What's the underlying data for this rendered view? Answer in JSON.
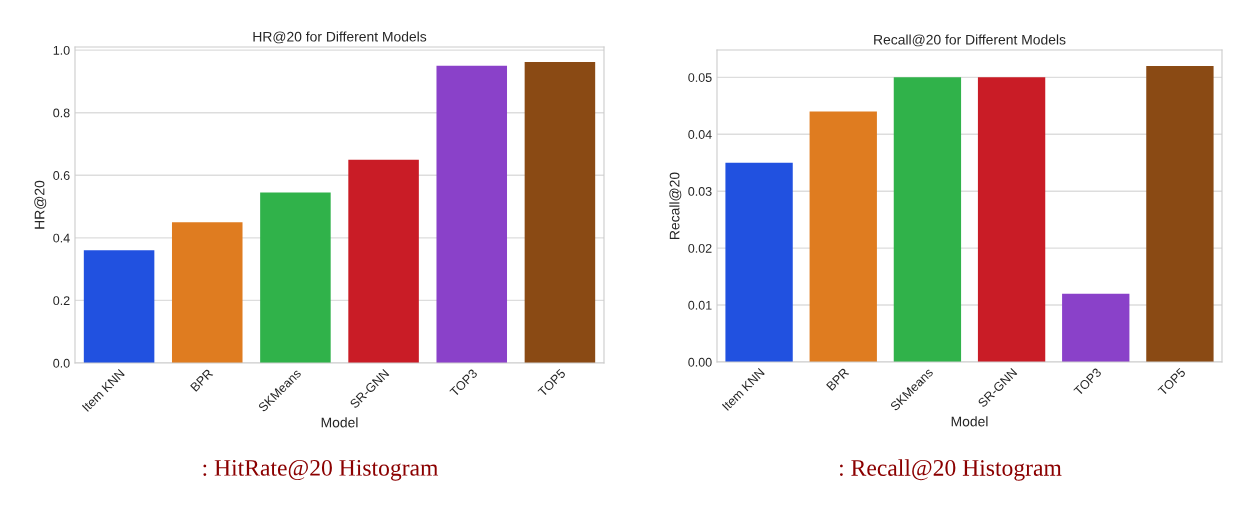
{
  "chart_data": [
    {
      "type": "bar",
      "title": "HR@20 for Different Models",
      "xlabel": "Model",
      "ylabel": "HR@20",
      "categories": [
        "Item KNN",
        "BPR",
        "SKMeans",
        "SR-GNN",
        "TOP3",
        "TOP5"
      ],
      "values": [
        0.36,
        0.45,
        0.545,
        0.65,
        0.95,
        0.962
      ],
      "colors": [
        "#2151e0",
        "#df7c20",
        "#30b24a",
        "#c91c26",
        "#8a41c9",
        "#8a4a14"
      ],
      "ylim": [
        0,
        1.01
      ],
      "yticks": [
        {
          "value": 0,
          "label": "0.0"
        },
        {
          "value": 0.2,
          "label": "0.2"
        },
        {
          "value": 0.4,
          "label": "0.4"
        },
        {
          "value": 0.6,
          "label": "0.6"
        },
        {
          "value": 0.8,
          "label": "0.8"
        },
        {
          "value": 1.0,
          "label": "1.0"
        }
      ],
      "grid": "y",
      "annotations": [
        ": HitRate@20 Histogram"
      ]
    },
    {
      "type": "bar",
      "title": "Recall@20 for Different Models",
      "xlabel": "Model",
      "ylabel": "Recall@20",
      "categories": [
        "Item KNN",
        "BPR",
        "SKMeans",
        "SR-GNN",
        "TOP3",
        "TOP5"
      ],
      "values": [
        0.035,
        0.044,
        0.05,
        0.05,
        0.012,
        0.052
      ],
      "colors": [
        "#2151e0",
        "#df7c20",
        "#30b24a",
        "#c91c26",
        "#8a41c9",
        "#8a4a14"
      ],
      "ylim": [
        0,
        0.0548
      ],
      "yticks": [
        {
          "value": 0,
          "label": "0.00"
        },
        {
          "value": 0.01,
          "label": "0.01"
        },
        {
          "value": 0.02,
          "label": "0.02"
        },
        {
          "value": 0.03,
          "label": "0.03"
        },
        {
          "value": 0.04,
          "label": "0.04"
        },
        {
          "value": 0.05,
          "label": "0.05"
        }
      ],
      "grid": "y",
      "annotations": [
        ": Recall@20 Histogram"
      ]
    }
  ]
}
